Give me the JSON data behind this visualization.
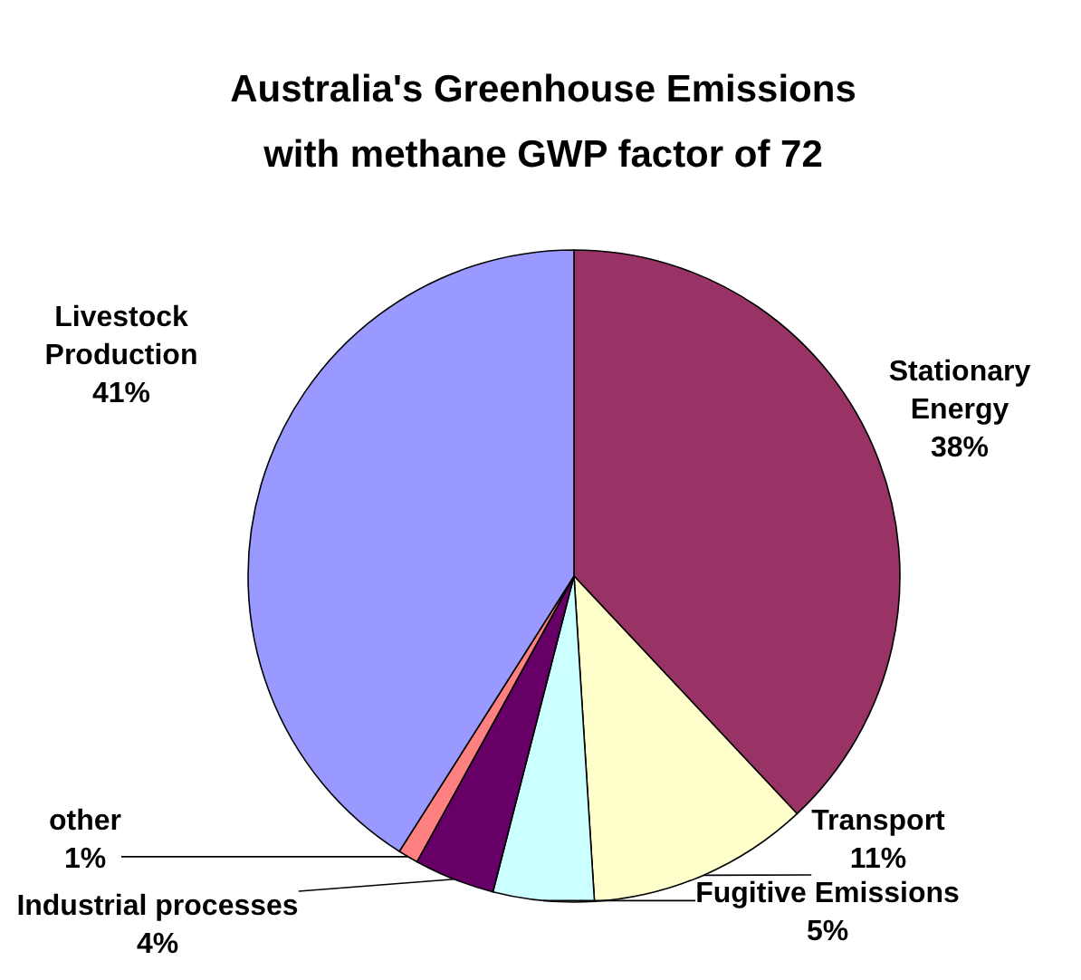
{
  "chart_data": {
    "type": "pie",
    "title": "Australia's Greenhouse Emissions with methane GWP factor of 72",
    "categories": [
      "Stationary Energy",
      "Transport",
      "Fugitive Emissions",
      "Industrial processes",
      "other",
      "Livestock Production"
    ],
    "values": [
      38,
      11,
      5,
      4,
      1,
      41
    ],
    "value_labels": [
      "38%",
      "11%",
      "5%",
      "4%",
      "1%",
      "41%"
    ],
    "colors": [
      "#993366",
      "#ffffcc",
      "#ccffff",
      "#660066",
      "#ff8080",
      "#9999ff"
    ]
  }
}
